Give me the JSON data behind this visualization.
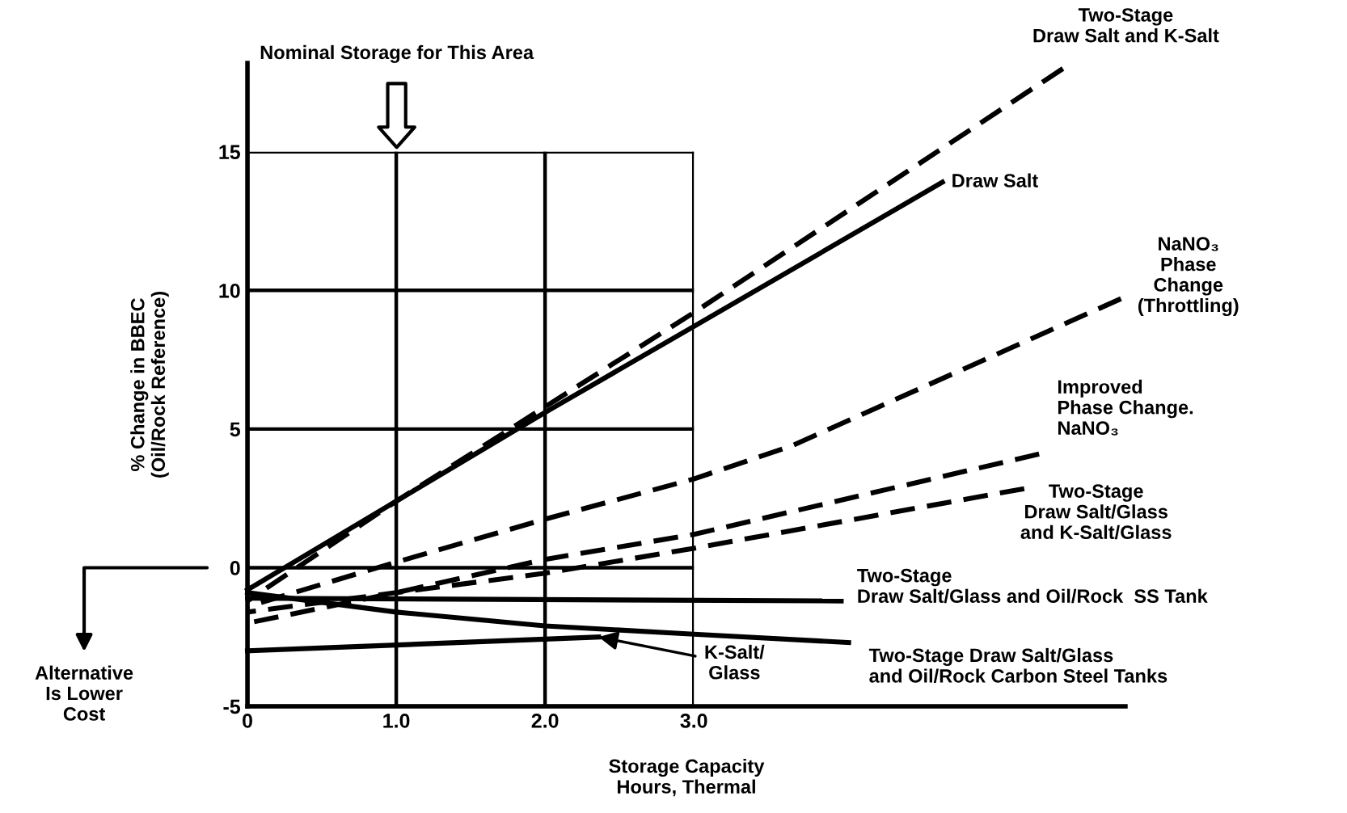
{
  "chart_data": {
    "type": "line",
    "xlabel": "Storage Capacity\nHours, Thermal",
    "ylabel": "% Change in BBEC\n(Oil/Rock Reference)",
    "xlim": [
      0,
      5.9
    ],
    "ylim": [
      -5,
      18.2
    ],
    "xticks": [
      0,
      {
        "value": 1,
        "label": "1.0"
      },
      {
        "value": 2,
        "label": "2.0"
      },
      {
        "value": 3,
        "label": "3.0"
      }
    ],
    "yticks": [
      -5,
      0,
      5,
      10,
      15
    ],
    "grid": true,
    "legend": false,
    "marker": "none",
    "series": [
      {
        "name": "Two-Stage\nDraw Salt and K-Salt",
        "color": "#000000",
        "line_style": "dashed",
        "x": [
          0,
          1,
          2,
          3,
          5.48
        ],
        "values": [
          -1.2,
          2.4,
          5.8,
          9.2,
          18.0
        ]
      },
      {
        "name": "Draw Salt",
        "color": "#000000",
        "line_style": "solid",
        "x": [
          0,
          1,
          2,
          3,
          4.67
        ],
        "values": [
          -0.8,
          2.4,
          5.6,
          8.7,
          13.9
        ]
      },
      {
        "name": "NaNO₃\nPhase\nChange\n(Throttling)",
        "color": "#000000",
        "line_style": "dashed",
        "x": [
          0,
          1,
          2,
          3,
          3.66,
          5.87
        ],
        "values": [
          -1.4,
          0.2,
          1.75,
          3.2,
          4.4,
          9.7
        ]
      },
      {
        "name": "Improved\nPhase Change.\nNaNO₃",
        "color": "#000000",
        "line_style": "dashed",
        "x": [
          0,
          1,
          2,
          3,
          5.32
        ],
        "values": [
          -2.0,
          -0.9,
          0.3,
          1.2,
          4.1
        ]
      },
      {
        "name": "Two-Stage\nDraw Salt/Glass\nand K-Salt/Glass",
        "color": "#000000",
        "line_style": "dashed",
        "x": [
          0,
          1,
          2,
          3,
          5.22
        ],
        "values": [
          -1.6,
          -0.9,
          -0.2,
          0.7,
          2.85
        ]
      },
      {
        "name": "Two-Stage\nDraw Salt/Glass and Oil/Rock  SS Tank",
        "color": "#000000",
        "line_style": "solid",
        "x": [
          0,
          3.99
        ],
        "values": [
          -1.1,
          -1.2
        ]
      },
      {
        "name": "Two-Stage Draw Salt/Glass\nand Oil/Rock Carbon Steel Tanks",
        "color": "#000000",
        "line_style": "solid",
        "x": [
          0,
          1,
          2,
          3,
          4.04
        ],
        "values": [
          -0.9,
          -1.6,
          -2.1,
          -2.4,
          -2.7
        ]
      },
      {
        "color": "#000000",
        "line_style": "solid",
        "x": [
          0,
          2.36
        ],
        "values": [
          -3.0,
          -2.5
        ]
      }
    ],
    "annotations": [
      "Nominal Storage for This Area",
      "Alternative\nIs Lower\nCost",
      {
        "text": "K-Salt/\nGlass",
        "x": 2.36,
        "y": -2.5
      }
    ]
  }
}
